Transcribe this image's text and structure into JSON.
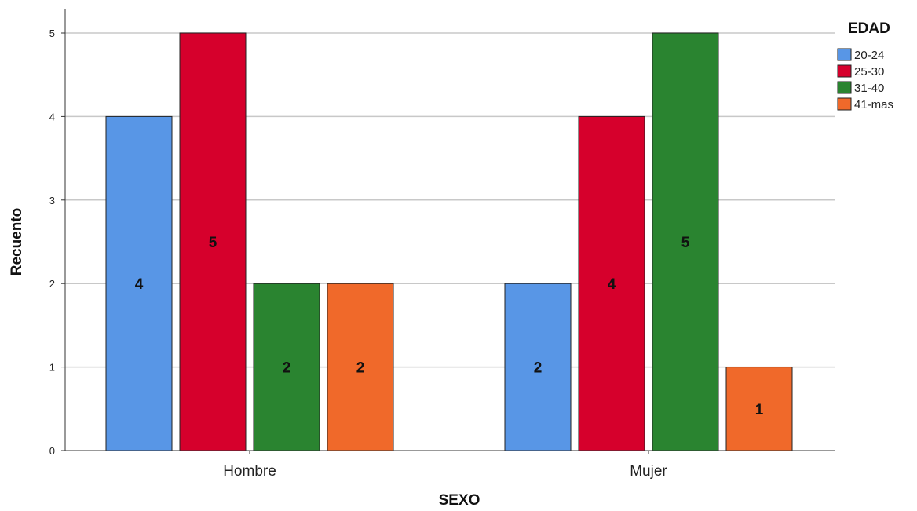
{
  "chart_data": {
    "type": "bar",
    "categories": [
      "Hombre",
      "Mujer"
    ],
    "series": [
      {
        "name": "20-24",
        "values": [
          4,
          2
        ],
        "color": "#5896e6"
      },
      {
        "name": "25-30",
        "values": [
          5,
          4
        ],
        "color": "#d6002c"
      },
      {
        "name": "31-40",
        "values": [
          2,
          5
        ],
        "color": "#2a8430"
      },
      {
        "name": "41-mas",
        "values": [
          2,
          1
        ],
        "color": "#f0692a"
      }
    ],
    "title": "",
    "xlabel": "SEXO",
    "ylabel": "Recuento",
    "ylim": [
      0,
      5
    ],
    "yticks": [
      "0",
      "1",
      "2",
      "3",
      "4",
      "5"
    ],
    "grid": true,
    "legend_title": "EDAD",
    "legend_position": "top-right",
    "data_labels": true
  }
}
